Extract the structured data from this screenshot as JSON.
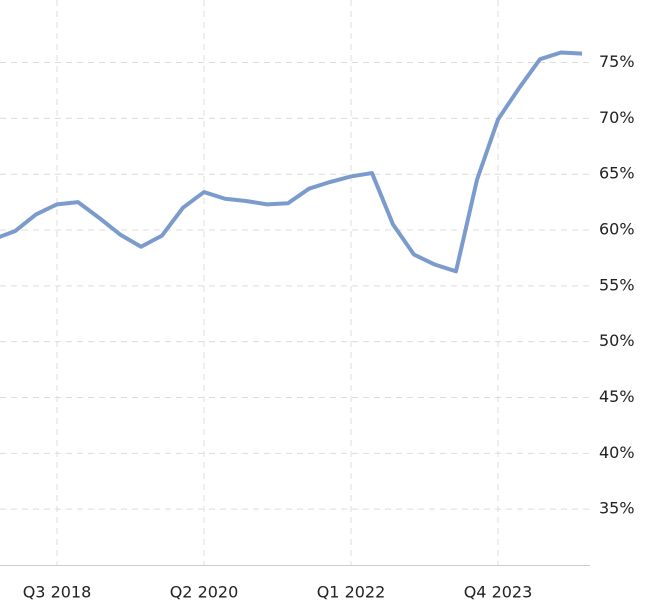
{
  "chart_data": {
    "type": "line",
    "categories": [
      null,
      null,
      null,
      "Q3 2018",
      null,
      null,
      null,
      null,
      null,
      null,
      "Q2 2020",
      null,
      null,
      null,
      null,
      null,
      null,
      "Q1 2022",
      null,
      null,
      null,
      null,
      null,
      null,
      "Q4 2023",
      null,
      null,
      null,
      null
    ],
    "series": [
      {
        "color": "#7b9bcc",
        "values": [
          59.2,
          59.9,
          61.4,
          62.3,
          62.5,
          61.1,
          59.6,
          58.5,
          59.5,
          62.0,
          63.4,
          62.8,
          62.6,
          62.3,
          62.4,
          63.7,
          64.3,
          64.8,
          65.1,
          60.5,
          57.8,
          56.9,
          56.3,
          64.5,
          69.9,
          72.7,
          75.3,
          75.9,
          75.8
        ]
      }
    ],
    "ylim": [
      30,
      80.6
    ],
    "yticks": [
      {
        "value": 35,
        "label": "35%"
      },
      {
        "value": 40,
        "label": "40%"
      },
      {
        "value": 45,
        "label": "45%"
      },
      {
        "value": 50,
        "label": "50%"
      },
      {
        "value": 55,
        "label": "55%"
      },
      {
        "value": 60,
        "label": "60%"
      },
      {
        "value": 65,
        "label": "65%"
      },
      {
        "value": 70,
        "label": "70%"
      },
      {
        "value": 75,
        "label": "75%"
      }
    ],
    "grid": true
  }
}
